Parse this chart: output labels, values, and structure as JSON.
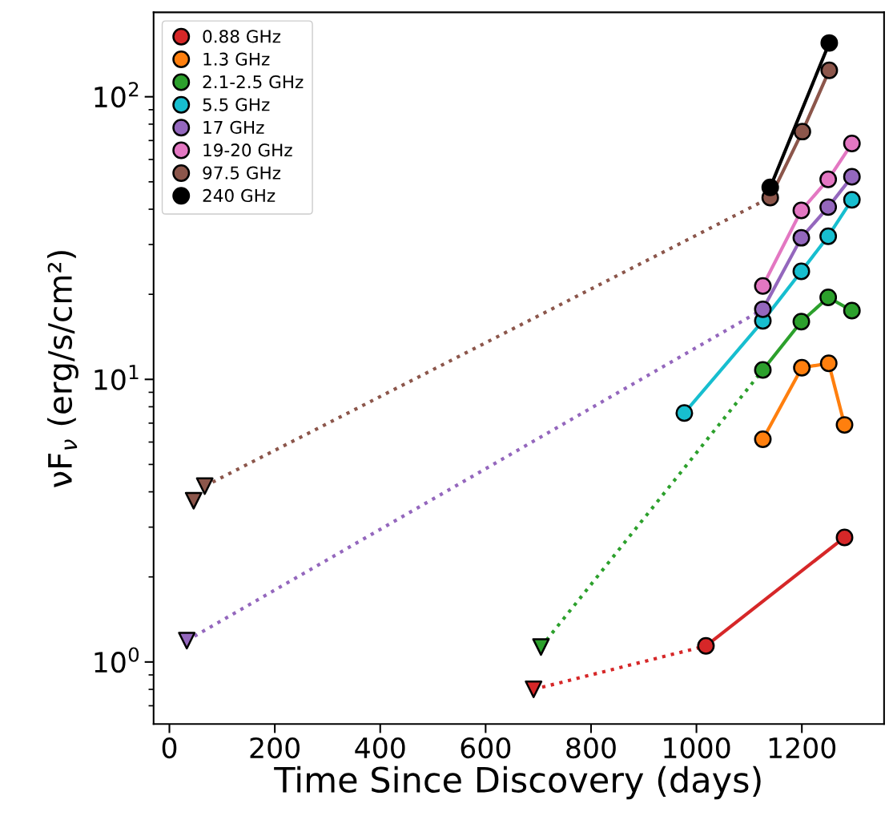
{
  "chart_data": {
    "type": "line",
    "xlabel": "Time Since Discovery (days)",
    "ylabel": "νF$_{ν}$ (erg/s/cm²)",
    "log": "y",
    "xlim": [
      -30,
      1356
    ],
    "xticks": [
      0,
      200,
      400,
      600,
      800,
      1000,
      1200
    ],
    "ylim": [
      0.603,
      199
    ],
    "yticks": [
      {
        "value": 1,
        "label": "10$^{0}$"
      },
      {
        "value": 10,
        "label": "10$^{1}$"
      },
      {
        "value": 100,
        "label": "10$^{2}$"
      }
    ],
    "grid": false,
    "legend": "top left",
    "series": [
      {
        "color": "#d62728",
        "x": [
          691,
          1018
        ],
        "values": [
          0.8,
          1.14
        ],
        "line_style": "dotted"
      },
      {
        "color": "#2ca02c",
        "x": [
          705,
          1126
        ],
        "values": [
          1.13,
          10.8
        ],
        "line_style": "dotted"
      },
      {
        "color": "#9467bd",
        "x": [
          33,
          1126
        ],
        "values": [
          1.19,
          17.7
        ],
        "line_style": "dotted"
      },
      {
        "color": "#8c564b",
        "x": [
          67,
          1140
        ],
        "values": [
          4.19,
          44
        ],
        "line_style": "dotted"
      },
      {
        "name": "0.88 GHz",
        "color": "#d62728",
        "x": [
          1018,
          1281
        ],
        "values": [
          1.14,
          2.76
        ],
        "marker": "circle",
        "line_style": "solid"
      },
      {
        "name": "1.3 GHz",
        "color": "#ff7f0e",
        "x": [
          1126,
          1200,
          1251,
          1281
        ],
        "values": [
          6.14,
          11.0,
          11.4,
          6.9
        ],
        "marker": "circle",
        "line_style": "solid"
      },
      {
        "name": "2.1-2.5 GHz",
        "color": "#2ca02c",
        "x": [
          1126,
          1199,
          1250,
          1295
        ],
        "values": [
          10.8,
          16.0,
          19.5,
          17.5
        ],
        "marker": "circle",
        "line_style": "solid"
      },
      {
        "name": "5.5 GHz",
        "color": "#17becf",
        "x": [
          977,
          1126,
          1199,
          1250,
          1295
        ],
        "values": [
          7.6,
          16.1,
          24.1,
          32.1,
          43.2
        ],
        "marker": "circle",
        "line_style": "solid"
      },
      {
        "name": "17 GHz",
        "color": "#9467bd",
        "x": [
          1126,
          1199,
          1250,
          1295
        ],
        "values": [
          17.7,
          31.7,
          40.7,
          52.1
        ],
        "marker": "circle",
        "line_style": "solid"
      },
      {
        "name": "19-20 GHz",
        "color": "#e377c2",
        "x": [
          1126,
          1199,
          1250,
          1295
        ],
        "values": [
          21.4,
          39.6,
          51,
          68.3
        ],
        "marker": "circle",
        "line_style": "solid"
      },
      {
        "name": "97.5 GHz",
        "color": "#8c564b",
        "x": [
          1140,
          1201,
          1252
        ],
        "values": [
          44,
          75.3,
          124
        ],
        "marker": "circle",
        "line_style": "solid"
      },
      {
        "name": "240 GHz",
        "color": "#000000",
        "x": [
          1140,
          1252
        ],
        "values": [
          47.8,
          155
        ],
        "marker": "circle",
        "line_style": "solid"
      },
      {
        "type": "scatter",
        "color": "#d62728",
        "x": [
          691
        ],
        "values": [
          0.8
        ],
        "marker": "triangle"
      },
      {
        "type": "scatter",
        "color": "#2ca02c",
        "x": [
          705
        ],
        "values": [
          1.13
        ],
        "marker": "triangle"
      },
      {
        "type": "scatter",
        "color": "#9467bd",
        "x": [
          33
        ],
        "values": [
          1.19
        ],
        "marker": "triangle"
      },
      {
        "type": "scatter",
        "color": "#8c564b",
        "x": [
          46,
          67
        ],
        "values": [
          3.72,
          4.19
        ],
        "marker": "triangle"
      }
    ]
  }
}
